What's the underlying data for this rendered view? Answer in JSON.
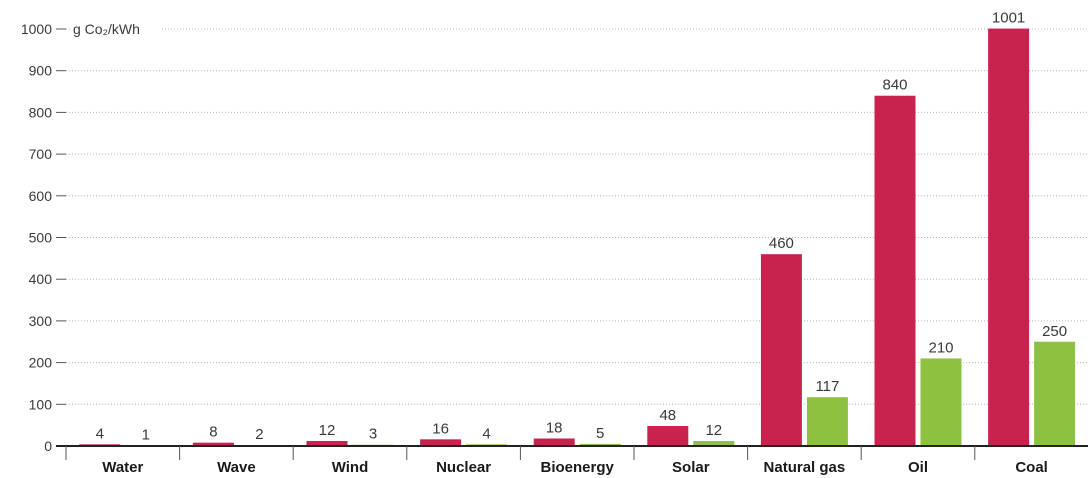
{
  "chart_data": {
    "type": "bar",
    "ylabel": "g Co₂/kWh",
    "ylim": [
      0,
      1000
    ],
    "yticks": [
      0,
      100,
      200,
      300,
      400,
      500,
      600,
      700,
      800,
      900,
      1000
    ],
    "grid": true,
    "categories": [
      "Water",
      "Wave",
      "Wind",
      "Nuclear",
      "Bioenergy",
      "Solar",
      "Natural gas",
      "Oil",
      "Coal"
    ],
    "series": [
      {
        "color": "#c8234f",
        "values": [
          4,
          8,
          12,
          16,
          18,
          48,
          460,
          840,
          1001
        ]
      },
      {
        "color": "#8dc13f",
        "values": [
          1,
          2,
          3,
          4,
          5,
          12,
          117,
          210,
          250
        ]
      }
    ],
    "data_labels": [
      [
        "4",
        "8",
        "12",
        "16",
        "18",
        "48",
        "460",
        "840",
        "1001"
      ],
      [
        "1",
        "2",
        "3",
        "4",
        "5",
        "12",
        "117",
        "210",
        "250"
      ]
    ]
  }
}
